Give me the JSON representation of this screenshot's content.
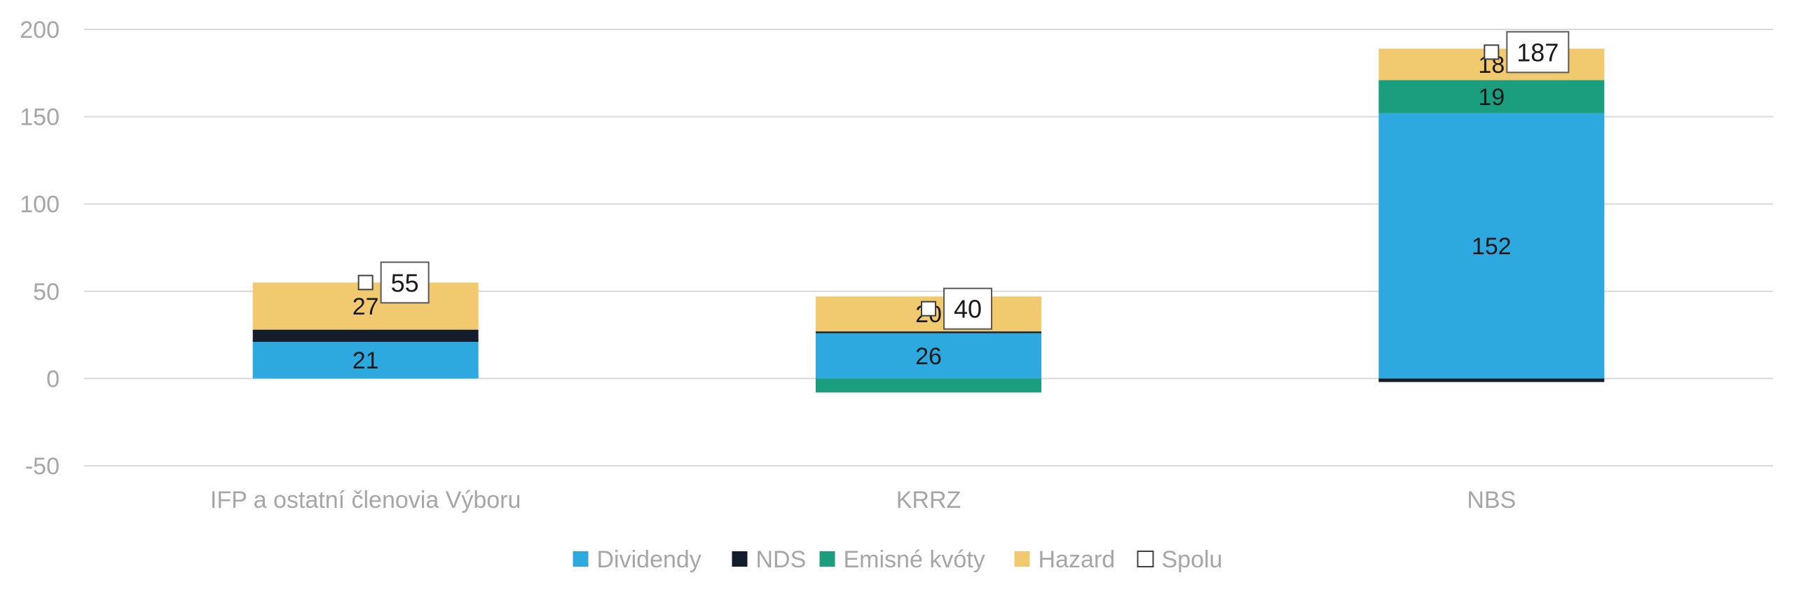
{
  "chart_data": {
    "type": "bar",
    "stacked": true,
    "categories": [
      "IFP a ostatní členovia Výboru",
      "KRRZ",
      "NBS"
    ],
    "series": [
      {
        "name": "Dividendy",
        "color": "#2ea9df",
        "values": [
          21,
          26,
          152
        ]
      },
      {
        "name": "NDS",
        "color": "#151c2c",
        "values": [
          7,
          1,
          -2
        ]
      },
      {
        "name": "Emisné kvóty",
        "color": "#1a9e7e",
        "values": [
          0,
          -8,
          19
        ]
      },
      {
        "name": "Hazard",
        "color": "#f1c96e",
        "values": [
          27,
          20,
          18
        ]
      }
    ],
    "total": {
      "name": "Spolu",
      "values": [
        55,
        40,
        187
      ]
    },
    "data_labels": {
      "Dividendy": [
        "21",
        "26",
        "152"
      ],
      "Hazard": [
        "27",
        "20",
        "18"
      ],
      "Emisné kvóty": [
        "",
        "",
        "19"
      ]
    },
    "ylim": [
      -50,
      200
    ],
    "yticks": [
      200,
      150,
      100,
      50,
      0,
      -50
    ],
    "grid": true,
    "legend_position": "bottom",
    "title": "",
    "xlabel": "",
    "ylabel": ""
  }
}
